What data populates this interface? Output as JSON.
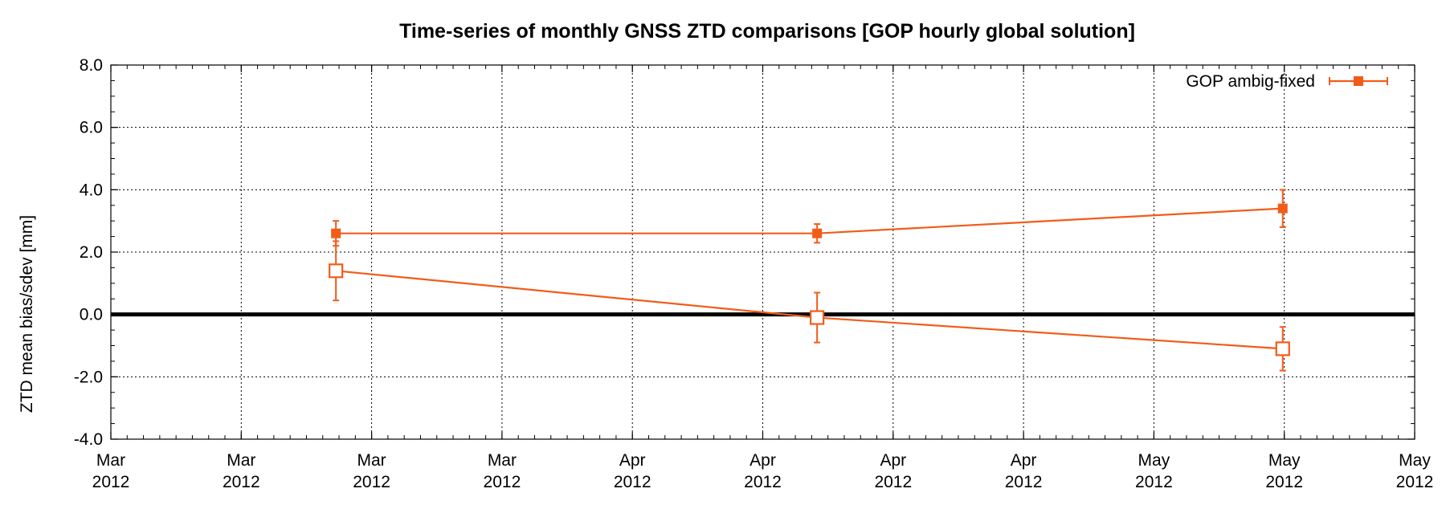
{
  "chart_data": {
    "type": "line",
    "title": "Time-series of monthly GNSS ZTD comparisons [GOP hourly global solution]",
    "ylabel": "ZTD mean bias/sdev [mm]",
    "xlabel": "",
    "ylim": [
      -4.0,
      8.0
    ],
    "yticks": [
      "8.0",
      "6.0",
      "4.0",
      "2.0",
      "0.0",
      "-2.0",
      "-4.0"
    ],
    "xticks": [
      [
        "Mar",
        "2012"
      ],
      [
        "Mar",
        "2012"
      ],
      [
        "Mar",
        "2012"
      ],
      [
        "Mar",
        "2012"
      ],
      [
        "Apr",
        "2012"
      ],
      [
        "Apr",
        "2012"
      ],
      [
        "Apr",
        "2012"
      ],
      [
        "Apr",
        "2012"
      ],
      [
        "May",
        "2012"
      ],
      [
        "May",
        "2012"
      ],
      [
        "May",
        "2012"
      ]
    ],
    "grid": true,
    "legend_position": "top-right",
    "series": [
      {
        "name": "GOP ambig-fixed",
        "style": "filled-square",
        "color": "#f25c19",
        "x": [
          "2012-03-15",
          "2012-04-15",
          "2012-05-15"
        ],
        "values": [
          2.6,
          2.6,
          3.4
        ],
        "errors": [
          0.4,
          0.3,
          0.6
        ]
      },
      {
        "name": "",
        "style": "open-square",
        "color": "#f25c19",
        "x": [
          "2012-03-15",
          "2012-04-15",
          "2012-05-15"
        ],
        "values": [
          1.4,
          -0.1,
          -1.1
        ],
        "errors": [
          0.95,
          0.8,
          0.7
        ]
      }
    ]
  }
}
